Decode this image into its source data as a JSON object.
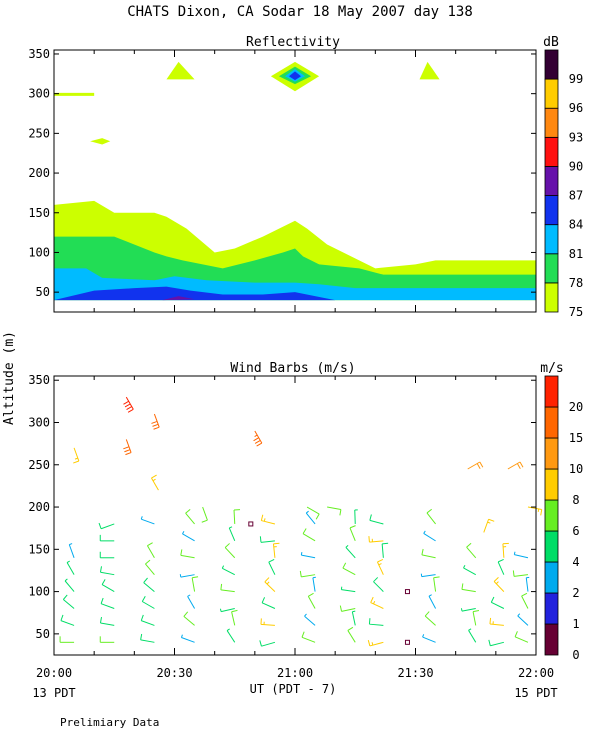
{
  "title": "CHATS Dixon, CA  Sodar  18 May 2007  day 138",
  "ylabel": "Altitude (m)",
  "xlabel": "UT  (PDT - 7)",
  "left_time_note": "13 PDT",
  "right_time_note": "15 PDT",
  "footnote": "Prelimiary Data",
  "chart_data": [
    {
      "type": "heatmap",
      "title": "Reflectivity",
      "colorbar_label": "dB",
      "xlim": [
        "20:00",
        "22:00"
      ],
      "ylim": [
        25,
        355
      ],
      "yticks": [
        50,
        100,
        150,
        200,
        250,
        300,
        350
      ],
      "xticks": [
        "20:00",
        "20:30",
        "21:00",
        "21:30",
        "22:00"
      ],
      "levels": [
        75,
        78,
        81,
        84,
        87,
        90,
        93,
        96,
        99
      ],
      "colors": [
        "#ccff00",
        "#22dd55",
        "#00bbff",
        "#1133ee",
        "#6611aa",
        "#ff1111",
        "#ff8811",
        "#ffcc00",
        "#330033"
      ],
      "features": [
        {
          "level": 75,
          "time": "20:00-22:00",
          "alt": "40-160"
        },
        {
          "level": 78,
          "time": "20:00-22:00",
          "alt": "40-120"
        },
        {
          "level": 81,
          "time": "20:00-22:00",
          "alt": "40-80"
        },
        {
          "level": 84,
          "time": "20:00-21:10",
          "alt": "40-57"
        },
        {
          "level": 87,
          "time": "20:25-20:35",
          "alt": "40-45"
        },
        {
          "level": 75,
          "time": "20:30",
          "alt": "320-340"
        },
        {
          "level": 87,
          "time": "21:00",
          "alt": "322"
        },
        {
          "level": 75,
          "time": "21:34",
          "alt": "320-340"
        },
        {
          "level": 75,
          "time": "20:00-20:10",
          "alt": "300"
        },
        {
          "level": 75,
          "time": "20:12",
          "alt": "240"
        }
      ]
    },
    {
      "type": "scatter",
      "title": "Wind Barbs (m/s)",
      "colorbar_label": "m/s",
      "xlim": [
        "20:00",
        "22:00"
      ],
      "ylim": [
        25,
        355
      ],
      "yticks": [
        50,
        100,
        150,
        200,
        250,
        300,
        350
      ],
      "xticks": [
        "20:00",
        "20:30",
        "21:00",
        "21:30",
        "22:00"
      ],
      "speed_levels": [
        0,
        1,
        2,
        4,
        6,
        8,
        10,
        15,
        20
      ],
      "colors": [
        "#660033",
        "#2222dd",
        "#00aaee",
        "#00dd66",
        "#66ee22",
        "#ffcc00",
        "#ff9911",
        "#ff6600",
        "#ff2200"
      ],
      "barbs": [
        {
          "t": 5,
          "alt": 40,
          "spd": 6,
          "dir": 270
        },
        {
          "t": 5,
          "alt": 60,
          "spd": 5,
          "dir": 290
        },
        {
          "t": 5,
          "alt": 80,
          "spd": 5,
          "dir": 310
        },
        {
          "t": 5,
          "alt": 100,
          "spd": 4,
          "dir": 320
        },
        {
          "t": 5,
          "alt": 120,
          "spd": 4,
          "dir": 330
        },
        {
          "t": 5,
          "alt": 140,
          "spd": 3,
          "dir": 340
        },
        {
          "t": 5,
          "alt": 270,
          "spd": 9,
          "dir": 160
        },
        {
          "t": 15,
          "alt": 40,
          "spd": 6,
          "dir": 270
        },
        {
          "t": 15,
          "alt": 60,
          "spd": 5,
          "dir": 280
        },
        {
          "t": 15,
          "alt": 80,
          "spd": 5,
          "dir": 290
        },
        {
          "t": 15,
          "alt": 100,
          "spd": 5,
          "dir": 300
        },
        {
          "t": 15,
          "alt": 120,
          "spd": 5,
          "dir": 280
        },
        {
          "t": 15,
          "alt": 140,
          "spd": 5,
          "dir": 270
        },
        {
          "t": 15,
          "alt": 160,
          "spd": 5,
          "dir": 270
        },
        {
          "t": 15,
          "alt": 180,
          "spd": 5,
          "dir": 250
        },
        {
          "t": 18,
          "alt": 280,
          "spd": 16,
          "dir": 160
        },
        {
          "t": 18,
          "alt": 330,
          "spd": 20,
          "dir": 150
        },
        {
          "t": 25,
          "alt": 40,
          "spd": 5,
          "dir": 280
        },
        {
          "t": 25,
          "alt": 60,
          "spd": 5,
          "dir": 290
        },
        {
          "t": 25,
          "alt": 80,
          "spd": 5,
          "dir": 300
        },
        {
          "t": 25,
          "alt": 100,
          "spd": 5,
          "dir": 310
        },
        {
          "t": 25,
          "alt": 120,
          "spd": 6,
          "dir": 320
        },
        {
          "t": 25,
          "alt": 140,
          "spd": 6,
          "dir": 330
        },
        {
          "t": 25,
          "alt": 180,
          "spd": 3,
          "dir": 290
        },
        {
          "t": 25,
          "alt": 310,
          "spd": 15,
          "dir": 160
        }
      ],
      "squares": [
        {
          "t": 49,
          "alt": 180,
          "spd": 0
        },
        {
          "t": 88,
          "alt": 100,
          "spd": 0
        },
        {
          "t": 88,
          "alt": 40,
          "spd": 0
        }
      ]
    }
  ]
}
